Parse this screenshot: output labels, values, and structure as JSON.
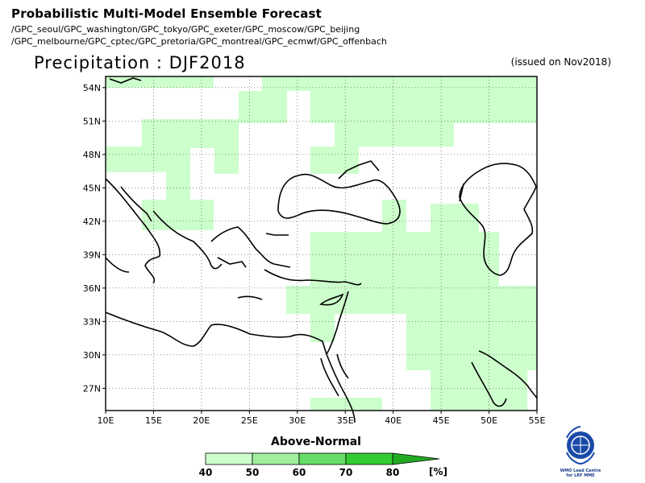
{
  "header": {
    "title": "Probabilistic Multi-Model Ensemble Forecast",
    "centers_line1": "/GPC_seoul/GPC_washington/GPC_tokyo/GPC_exeter/GPC_moscow/GPC_beijing",
    "centers_line2": "/GPC_melbourne/GPC_cptec/GPC_pretoria/GPC_montreal/GPC_ecmwf/GPC_offenbach"
  },
  "map": {
    "variable_title": "Precipitation : DJF2018",
    "issued": "(issued on Nov2018)",
    "lat_labels": [
      "54N",
      "51N",
      "48N",
      "45N",
      "42N",
      "39N",
      "36N",
      "33N",
      "30N",
      "27N"
    ],
    "lon_labels": [
      "10E",
      "15E",
      "20E",
      "25E",
      "30E",
      "35E",
      "40E",
      "45E",
      "50E",
      "55E"
    ],
    "lon_range": [
      10,
      55
    ],
    "lat_range": [
      25,
      55
    ],
    "gridlines": true
  },
  "legend": {
    "category": "Above-Normal",
    "levels": [
      "40",
      "50",
      "60",
      "70",
      "80"
    ],
    "unit": "[%]",
    "colors": [
      "#ccffcc",
      "#a0f0a0",
      "#66dd66",
      "#33cc33",
      "#22aa22"
    ]
  },
  "logo": {
    "name": "WMO Lead Centre for LRF MME",
    "icon": "wmo-emblem-icon"
  },
  "shaded_cells_note_color": "#ccffcc"
}
